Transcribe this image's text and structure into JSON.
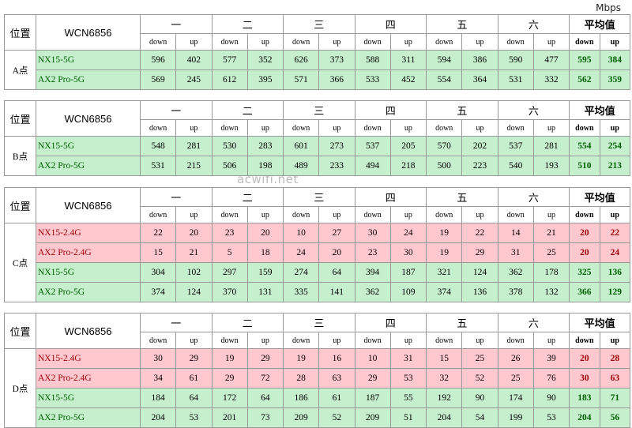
{
  "unit": "Mbps",
  "watermark": "acwifi.net",
  "header": {
    "position": "位置",
    "device": "WCN6856",
    "groups": [
      "一",
      "二",
      "三",
      "四",
      "五",
      "六",
      "平均值"
    ],
    "subheaders": [
      "down",
      "up"
    ]
  },
  "tables": [
    {
      "location": "A点",
      "rows": [
        {
          "name": "NX15-5G",
          "color": "#c6efce",
          "text_color": "#006100",
          "values": [
            596,
            402,
            577,
            352,
            626,
            373,
            588,
            311,
            594,
            386,
            590,
            477,
            595,
            384
          ]
        },
        {
          "name": "AX2 Pro-5G",
          "color": "#c6efce",
          "text_color": "#006100",
          "values": [
            569,
            245,
            612,
            395,
            571,
            366,
            533,
            452,
            554,
            364,
            531,
            332,
            562,
            359
          ]
        }
      ]
    },
    {
      "location": "B点",
      "rows": [
        {
          "name": "NX15-5G",
          "color": "#c6efce",
          "text_color": "#006100",
          "values": [
            548,
            281,
            530,
            283,
            601,
            273,
            537,
            205,
            570,
            202,
            537,
            281,
            554,
            254
          ]
        },
        {
          "name": "AX2 Pro-5G",
          "color": "#c6efce",
          "text_color": "#006100",
          "values": [
            531,
            215,
            506,
            198,
            489,
            233,
            494,
            218,
            500,
            223,
            540,
            193,
            510,
            213
          ]
        }
      ]
    },
    {
      "location": "C点",
      "rows": [
        {
          "name": "NX15-2.4G",
          "color": "#ffc7ce",
          "text_color": "#9c0006",
          "values": [
            22,
            20,
            23,
            20,
            10,
            27,
            30,
            24,
            19,
            22,
            14,
            21,
            20,
            22
          ]
        },
        {
          "name": "AX2 Pro-2.4G",
          "color": "#ffc7ce",
          "text_color": "#9c0006",
          "values": [
            15,
            21,
            5,
            18,
            24,
            20,
            23,
            30,
            19,
            29,
            31,
            25,
            20,
            24
          ]
        },
        {
          "name": "NX15-5G",
          "color": "#c6efce",
          "text_color": "#006100",
          "values": [
            304,
            102,
            297,
            159,
            274,
            64,
            394,
            187,
            321,
            124,
            362,
            178,
            325,
            136
          ]
        },
        {
          "name": "AX2 Pro-5G",
          "color": "#c6efce",
          "text_color": "#006100",
          "values": [
            374,
            124,
            370,
            131,
            335,
            141,
            362,
            109,
            374,
            136,
            378,
            132,
            366,
            129
          ]
        }
      ]
    },
    {
      "location": "D点",
      "rows": [
        {
          "name": "NX15-2.4G",
          "color": "#ffc7ce",
          "text_color": "#9c0006",
          "values": [
            30,
            29,
            19,
            29,
            19,
            16,
            10,
            31,
            15,
            25,
            26,
            39,
            20,
            28
          ]
        },
        {
          "name": "AX2 Pro-2.4G",
          "color": "#ffc7ce",
          "text_color": "#9c0006",
          "values": [
            34,
            61,
            29,
            72,
            28,
            63,
            29,
            53,
            32,
            52,
            25,
            76,
            30,
            63
          ]
        },
        {
          "name": "NX15-5G",
          "color": "#c6efce",
          "text_color": "#006100",
          "values": [
            184,
            64,
            172,
            64,
            186,
            61,
            187,
            55,
            192,
            90,
            174,
            90,
            183,
            71
          ]
        },
        {
          "name": "AX2 Pro-5G",
          "color": "#c6efce",
          "text_color": "#006100",
          "values": [
            204,
            53,
            201,
            73,
            209,
            52,
            209,
            51,
            204,
            54,
            199,
            53,
            204,
            56
          ]
        }
      ]
    }
  ]
}
